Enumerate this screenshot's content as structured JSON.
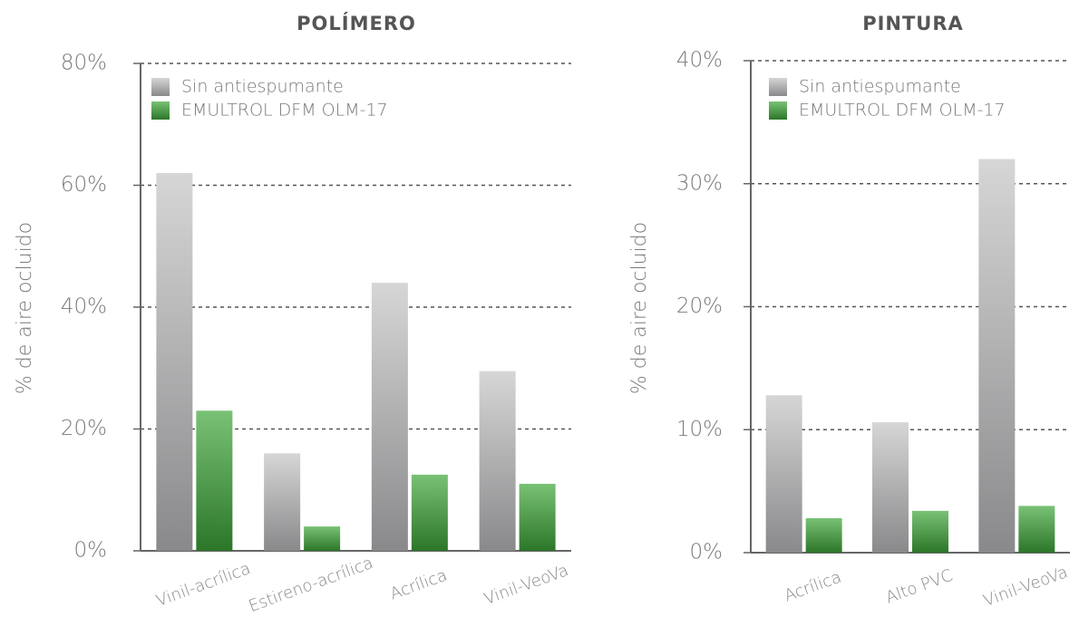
{
  "chart_data": [
    {
      "type": "bar",
      "title": "POLÍMERO",
      "y_label": "% de aire ocluido",
      "categories": [
        "Vinil-acrílica",
        "Estireno-acrílica",
        "Acrílica",
        "Vinil-VeoVa"
      ],
      "series": [
        {
          "name": "Sin antiespumante",
          "color": "#c4c4c6",
          "values": [
            62,
            16,
            44,
            29.5
          ]
        },
        {
          "name": "EMULTROL DFM OLM-17",
          "color": "#3fa83a",
          "values": [
            23,
            4,
            12.5,
            11
          ]
        }
      ],
      "ylim": [
        0,
        80
      ],
      "yticks": [
        {
          "value": 0,
          "label": "0%"
        },
        {
          "value": 20,
          "label": "20%"
        },
        {
          "value": 40,
          "label": "40%"
        },
        {
          "value": 60,
          "label": "60%"
        },
        {
          "value": 80,
          "label": "80%"
        }
      ],
      "grid": true,
      "legend": "top-left"
    },
    {
      "type": "bar",
      "title": "PINTURA",
      "y_label": "% de aire ocluido",
      "categories": [
        "Acrílica",
        "Alto PVC",
        "Vinil-VeoVa"
      ],
      "series": [
        {
          "name": "Sin antiespumante",
          "color": "#c4c4c6",
          "values": [
            12.8,
            10.6,
            32
          ]
        },
        {
          "name": "EMULTROL DFM OLM-17",
          "color": "#3fa83a",
          "values": [
            2.8,
            3.4,
            3.8
          ]
        }
      ],
      "ylim": [
        0,
        40
      ],
      "yticks": [
        {
          "value": 0,
          "label": "0%"
        },
        {
          "value": 10,
          "label": "10%"
        },
        {
          "value": 20,
          "label": "20%"
        },
        {
          "value": 30,
          "label": "30%"
        },
        {
          "value": 40,
          "label": "40%"
        }
      ],
      "grid": true,
      "legend": "top-left"
    }
  ]
}
